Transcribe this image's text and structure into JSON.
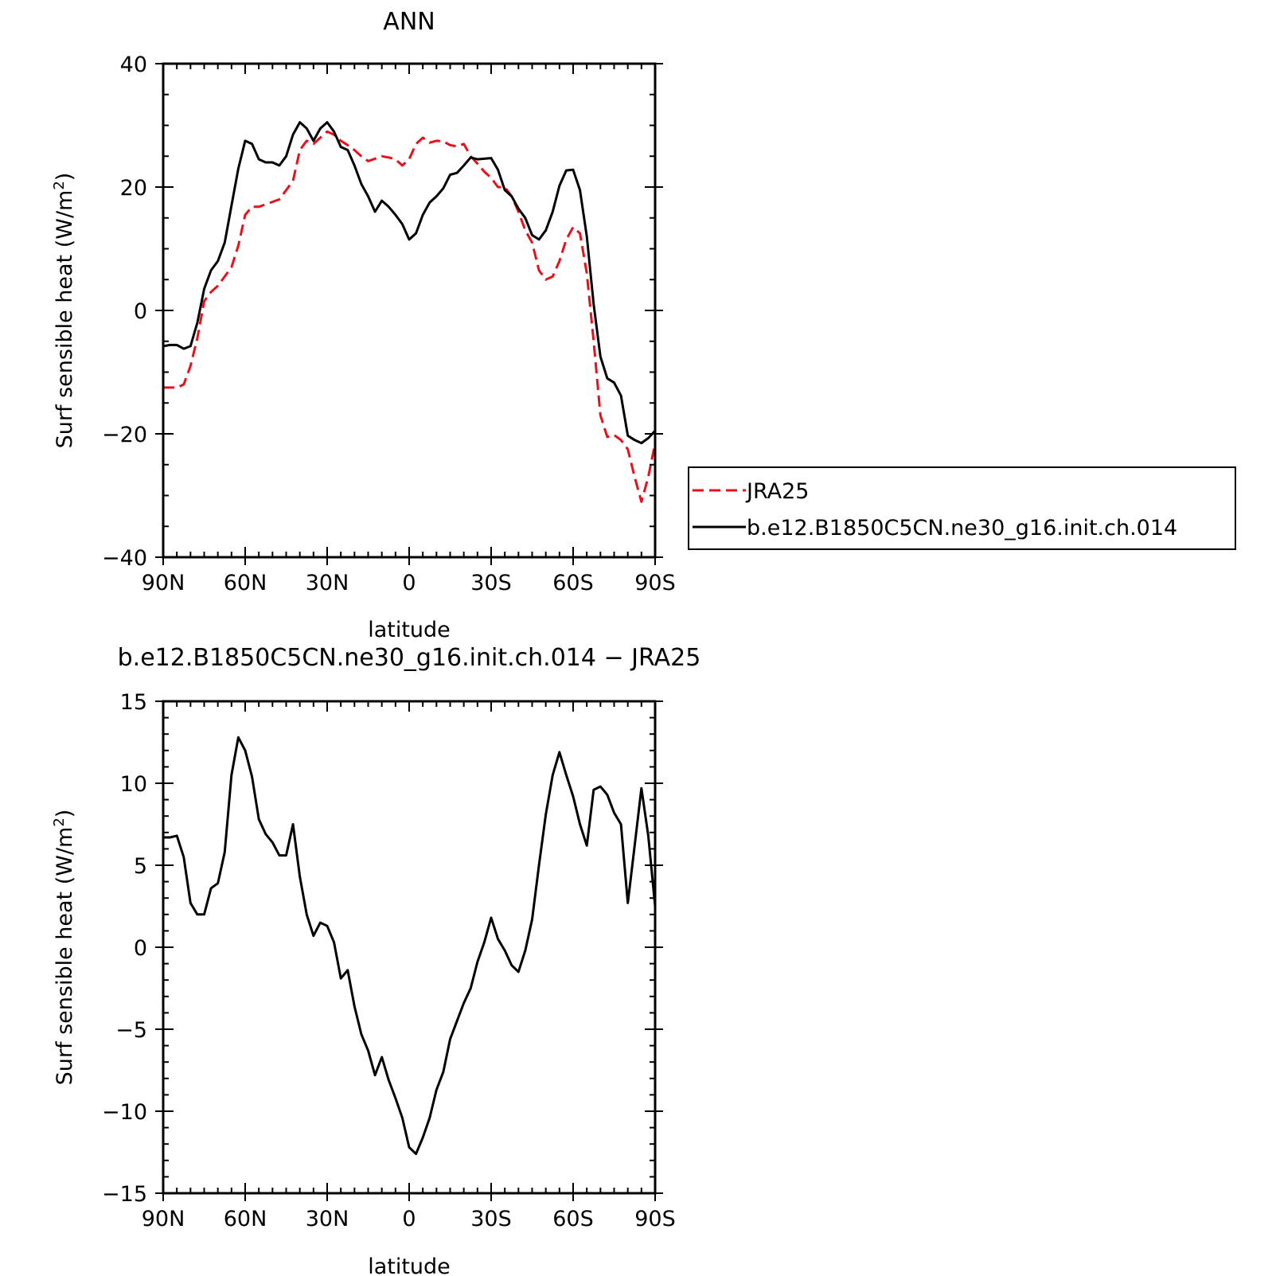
{
  "chart_data": [
    {
      "type": "line",
      "title": "ANN",
      "xlabel": "latitude",
      "ylabel": "Surf sensible heat (W/m",
      "ylabel_sup": "2",
      "ylabel_close": ")",
      "xlim": [
        90,
        -90
      ],
      "ylim": [
        -40,
        40
      ],
      "xticks": [
        {
          "v": 90,
          "label": "90N"
        },
        {
          "v": 60,
          "label": "60N"
        },
        {
          "v": 30,
          "label": "30N"
        },
        {
          "v": 0,
          "label": "0"
        },
        {
          "v": -30,
          "label": "30S"
        },
        {
          "v": -60,
          "label": "60S"
        },
        {
          "v": -90,
          "label": "90S"
        }
      ],
      "yticks": [
        {
          "v": 40,
          "label": "40"
        },
        {
          "v": 20,
          "label": "20"
        },
        {
          "v": 0,
          "label": "0"
        },
        {
          "v": -20,
          "label": "−20"
        },
        {
          "v": -40,
          "label": "−40"
        }
      ],
      "grid": false,
      "legend": "right",
      "series": [
        {
          "name": "JRA25",
          "color": "#e8101a",
          "dash": true,
          "points": [
            [
              90,
              -12.5
            ],
            [
              87.5,
              -12.5
            ],
            [
              85,
              -12.5
            ],
            [
              82.5,
              -12.0
            ],
            [
              80,
              -9.0
            ],
            [
              77.5,
              -4.5
            ],
            [
              75,
              1.5
            ],
            [
              72.5,
              3.0
            ],
            [
              70,
              4.0
            ],
            [
              67.5,
              5.5
            ],
            [
              65,
              7.0
            ],
            [
              62.5,
              10.5
            ],
            [
              60,
              15.5
            ],
            [
              57.5,
              16.8
            ],
            [
              55,
              16.8
            ],
            [
              52.5,
              17.2
            ],
            [
              50,
              17.6
            ],
            [
              47.5,
              18.0
            ],
            [
              45,
              19.5
            ],
            [
              42.5,
              21.0
            ],
            [
              40,
              26.0
            ],
            [
              37.5,
              27.5
            ],
            [
              35,
              27.0
            ],
            [
              32.5,
              28.0
            ],
            [
              30,
              29.0
            ],
            [
              27.5,
              28.5
            ],
            [
              25,
              27.5
            ],
            [
              22.5,
              26.8
            ],
            [
              20,
              26.0
            ],
            [
              17.5,
              25.0
            ],
            [
              15,
              24.2
            ],
            [
              12.5,
              24.6
            ],
            [
              10,
              25.0
            ],
            [
              7.5,
              24.8
            ],
            [
              5,
              24.5
            ],
            [
              2.5,
              23.5
            ],
            [
              0,
              24.5
            ],
            [
              -2.5,
              27.0
            ],
            [
              -5,
              28.0
            ],
            [
              -7.5,
              27.2
            ],
            [
              -10,
              27.5
            ],
            [
              -12.5,
              27.4
            ],
            [
              -15,
              26.8
            ],
            [
              -17.5,
              26.6
            ],
            [
              -20,
              27.0
            ],
            [
              -22.5,
              25.0
            ],
            [
              -25,
              23.8
            ],
            [
              -27.5,
              22.5
            ],
            [
              -30,
              21.5
            ],
            [
              -32.5,
              20.0
            ],
            [
              -35,
              20.0
            ],
            [
              -37.5,
              18.5
            ],
            [
              -40,
              16.0
            ],
            [
              -42.5,
              13.0
            ],
            [
              -45,
              11.0
            ],
            [
              -47.5,
              6.5
            ],
            [
              -50,
              5.0
            ],
            [
              -52.5,
              5.5
            ],
            [
              -55,
              8.0
            ],
            [
              -57.5,
              11.5
            ],
            [
              -60,
              13.5
            ],
            [
              -62.5,
              12.5
            ],
            [
              -65,
              6.0
            ],
            [
              -67.5,
              -5.0
            ],
            [
              -70,
              -17.0
            ],
            [
              -72.5,
              -20.5
            ],
            [
              -75,
              -20.2
            ],
            [
              -77.5,
              -21.0
            ],
            [
              -80,
              -22.5
            ],
            [
              -82.5,
              -27.0
            ],
            [
              -85,
              -31.0
            ],
            [
              -87.5,
              -27.0
            ],
            [
              -90,
              -21.5
            ]
          ]
        },
        {
          "name": "b.e12.B1850C5CN.ne30_g16.init.ch.014",
          "color": "#000000",
          "dash": false,
          "points": [
            [
              90,
              -5.8
            ],
            [
              87.5,
              -5.6
            ],
            [
              85,
              -5.6
            ],
            [
              82.5,
              -6.2
            ],
            [
              80,
              -5.8
            ],
            [
              77.5,
              -2.0
            ],
            [
              75,
              3.5
            ],
            [
              72.5,
              6.5
            ],
            [
              70,
              8.0
            ],
            [
              67.5,
              11.0
            ],
            [
              65,
              17.0
            ],
            [
              62.5,
              23.0
            ],
            [
              60,
              27.5
            ],
            [
              57.5,
              27.0
            ],
            [
              55,
              24.5
            ],
            [
              52.5,
              24.0
            ],
            [
              50,
              24.0
            ],
            [
              47.5,
              23.5
            ],
            [
              45,
              25.0
            ],
            [
              42.5,
              28.5
            ],
            [
              40,
              30.5
            ],
            [
              37.5,
              29.5
            ],
            [
              35,
              27.5
            ],
            [
              32.5,
              29.5
            ],
            [
              30,
              30.5
            ],
            [
              27.5,
              29.0
            ],
            [
              25,
              26.5
            ],
            [
              22.5,
              26.0
            ],
            [
              20,
              23.5
            ],
            [
              17.5,
              20.5
            ],
            [
              15,
              18.5
            ],
            [
              12.5,
              16.0
            ],
            [
              10,
              17.8
            ],
            [
              7.5,
              16.8
            ],
            [
              5,
              15.5
            ],
            [
              2.5,
              14.0
            ],
            [
              0,
              11.5
            ],
            [
              -2.5,
              12.5
            ],
            [
              -5,
              15.5
            ],
            [
              -7.5,
              17.5
            ],
            [
              -10,
              18.5
            ],
            [
              -12.5,
              19.8
            ],
            [
              -15,
              22.0
            ],
            [
              -17.5,
              22.3
            ],
            [
              -20,
              23.5
            ],
            [
              -22.5,
              24.8
            ],
            [
              -25,
              24.5
            ],
            [
              -27.5,
              24.6
            ],
            [
              -30,
              24.7
            ],
            [
              -32.5,
              22.8
            ],
            [
              -35,
              19.5
            ],
            [
              -37.5,
              18.5
            ],
            [
              -40,
              16.5
            ],
            [
              -42.5,
              15.0
            ],
            [
              -45,
              12.2
            ],
            [
              -47.5,
              11.5
            ],
            [
              -50,
              13.0
            ],
            [
              -52.5,
              16.0
            ],
            [
              -55,
              20.2
            ],
            [
              -57.5,
              22.7
            ],
            [
              -60,
              22.8
            ],
            [
              -62.5,
              19.5
            ],
            [
              -65,
              12.0
            ],
            [
              -67.5,
              1.0
            ],
            [
              -70,
              -7.5
            ],
            [
              -72.5,
              -11.0
            ],
            [
              -75,
              -11.7
            ],
            [
              -77.5,
              -13.8
            ],
            [
              -80,
              -20.3
            ],
            [
              -82.5,
              -21.0
            ],
            [
              -85,
              -21.5
            ],
            [
              -87.5,
              -20.7
            ],
            [
              -90,
              -19.5
            ]
          ]
        }
      ]
    },
    {
      "type": "line",
      "title": "b.e12.B1850C5CN.ne30_g16.init.ch.014 − JRA25",
      "xlabel": "latitude",
      "ylabel": "Surf sensible heat (W/m",
      "ylabel_sup": "2",
      "ylabel_close": ")",
      "xlim": [
        90,
        -90
      ],
      "ylim": [
        -15,
        15
      ],
      "xticks": [
        {
          "v": 90,
          "label": "90N"
        },
        {
          "v": 60,
          "label": "60N"
        },
        {
          "v": 30,
          "label": "30N"
        },
        {
          "v": 0,
          "label": "0"
        },
        {
          "v": -30,
          "label": "30S"
        },
        {
          "v": -60,
          "label": "60S"
        },
        {
          "v": -90,
          "label": "90S"
        }
      ],
      "yticks": [
        {
          "v": 15,
          "label": "15"
        },
        {
          "v": 10,
          "label": "10"
        },
        {
          "v": 5,
          "label": "5"
        },
        {
          "v": 0,
          "label": "0"
        },
        {
          "v": -5,
          "label": "−5"
        },
        {
          "v": -10,
          "label": "−10"
        },
        {
          "v": -15,
          "label": "−15"
        }
      ],
      "grid": false,
      "series": [
        {
          "color": "#000000",
          "dash": false,
          "points": [
            [
              90,
              6.7
            ],
            [
              87.5,
              6.7
            ],
            [
              85,
              6.8
            ],
            [
              82.5,
              5.5
            ],
            [
              80,
              2.7
            ],
            [
              77.5,
              2.0
            ],
            [
              75,
              2.0
            ],
            [
              72.5,
              3.6
            ],
            [
              70,
              3.9
            ],
            [
              67.5,
              5.8
            ],
            [
              65,
              10.5
            ],
            [
              62.5,
              12.8
            ],
            [
              60,
              12.0
            ],
            [
              57.5,
              10.4
            ],
            [
              55,
              7.8
            ],
            [
              52.5,
              6.9
            ],
            [
              50,
              6.4
            ],
            [
              47.5,
              5.6
            ],
            [
              45,
              5.6
            ],
            [
              42.5,
              7.5
            ],
            [
              40,
              4.3
            ],
            [
              37.5,
              2.0
            ],
            [
              35,
              0.7
            ],
            [
              32.5,
              1.5
            ],
            [
              30,
              1.3
            ],
            [
              27.5,
              0.3
            ],
            [
              25,
              -1.9
            ],
            [
              22.5,
              -1.4
            ],
            [
              20,
              -3.6
            ],
            [
              17.5,
              -5.3
            ],
            [
              15,
              -6.3
            ],
            [
              12.5,
              -7.8
            ],
            [
              10,
              -6.7
            ],
            [
              7.5,
              -8.1
            ],
            [
              5,
              -9.2
            ],
            [
              2.5,
              -10.4
            ],
            [
              0,
              -12.2
            ],
            [
              -2.5,
              -12.6
            ],
            [
              -5,
              -11.6
            ],
            [
              -7.5,
              -10.4
            ],
            [
              -10,
              -8.7
            ],
            [
              -12.5,
              -7.6
            ],
            [
              -15,
              -5.6
            ],
            [
              -17.5,
              -4.5
            ],
            [
              -20,
              -3.4
            ],
            [
              -22.5,
              -2.5
            ],
            [
              -25,
              -0.9
            ],
            [
              -27.5,
              0.3
            ],
            [
              -30,
              1.8
            ],
            [
              -32.5,
              0.5
            ],
            [
              -35,
              -0.2
            ],
            [
              -37.5,
              -1.1
            ],
            [
              -40,
              -1.5
            ],
            [
              -42.5,
              -0.2
            ],
            [
              -45,
              1.7
            ],
            [
              -47.5,
              5.0
            ],
            [
              -50,
              8.1
            ],
            [
              -52.5,
              10.5
            ],
            [
              -55,
              11.9
            ],
            [
              -57.5,
              10.5
            ],
            [
              -60,
              9.2
            ],
            [
              -62.5,
              7.5
            ],
            [
              -65,
              6.2
            ],
            [
              -67.5,
              9.6
            ],
            [
              -70,
              9.8
            ],
            [
              -72.5,
              9.3
            ],
            [
              -75,
              8.2
            ],
            [
              -77.5,
              7.5
            ],
            [
              -80,
              2.7
            ],
            [
              -82.5,
              6.2
            ],
            [
              -85,
              9.7
            ],
            [
              -87.5,
              6.8
            ],
            [
              -90,
              2.5
            ]
          ]
        }
      ]
    }
  ]
}
